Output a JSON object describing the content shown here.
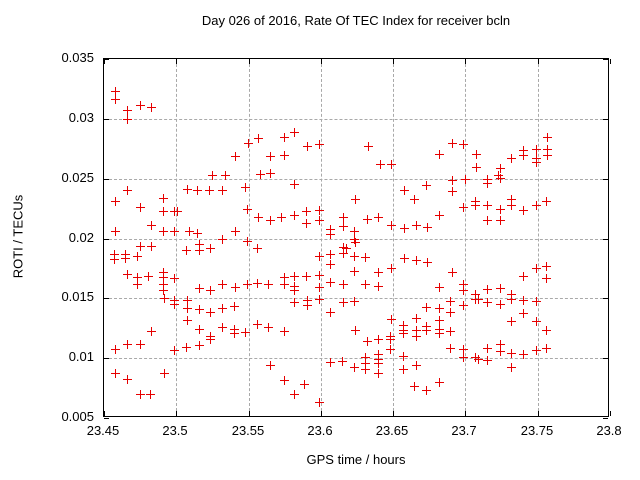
{
  "chart_data": {
    "type": "scatter",
    "title": "Day 026 of 2016, Rate Of TEC Index for receiver bcln",
    "xlabel": "GPS time / hours",
    "ylabel": "ROTI / TECUs",
    "xlim": [
      23.45,
      23.8
    ],
    "ylim": [
      0.005,
      0.035
    ],
    "x_ticks": [
      23.45,
      23.5,
      23.55,
      23.6,
      23.65,
      23.7,
      23.75,
      23.8
    ],
    "x_tick_labels": [
      "23.45",
      "23.5",
      "23.55",
      "23.6",
      "23.65",
      "23.7",
      "23.75",
      "23.8"
    ],
    "y_ticks": [
      0.005,
      0.01,
      0.015,
      0.02,
      0.025,
      0.03,
      0.035
    ],
    "y_tick_labels": [
      "0.005",
      "0.01",
      "0.015",
      "0.02",
      "0.025",
      "0.03",
      "0.035"
    ],
    "grid": true,
    "legend": "none",
    "marker": "plus",
    "marker_color": "#e60000",
    "grid_color": "#a9a9a9",
    "border_color": "#000000",
    "background_color": "#ffffff",
    "series": [
      {
        "name": "ROTI",
        "points": [
          [
            23.459,
            0.0322
          ],
          [
            23.459,
            0.0315
          ],
          [
            23.467,
            0.0306
          ],
          [
            23.467,
            0.0298
          ],
          [
            23.476,
            0.031
          ],
          [
            23.484,
            0.0308
          ],
          [
            23.551,
            0.0278
          ],
          [
            23.558,
            0.0282
          ],
          [
            23.542,
            0.0267
          ],
          [
            23.566,
            0.0267
          ],
          [
            23.526,
            0.0251
          ],
          [
            23.535,
            0.0251
          ],
          [
            23.559,
            0.0252
          ],
          [
            23.566,
            0.0253
          ],
          [
            23.576,
            0.0283
          ],
          [
            23.583,
            0.0287
          ],
          [
            23.576,
            0.0268
          ],
          [
            23.592,
            0.0276
          ],
          [
            23.6,
            0.0277
          ],
          [
            23.634,
            0.0276
          ],
          [
            23.642,
            0.0261
          ],
          [
            23.65,
            0.0261
          ],
          [
            23.683,
            0.0269
          ],
          [
            23.692,
            0.0278
          ],
          [
            23.7,
            0.0277
          ],
          [
            23.709,
            0.0269
          ],
          [
            23.709,
            0.0258
          ],
          [
            23.725,
            0.0257
          ],
          [
            23.724,
            0.0251
          ],
          [
            23.733,
            0.0266
          ],
          [
            23.741,
            0.0272
          ],
          [
            23.741,
            0.0268
          ],
          [
            23.75,
            0.0273
          ],
          [
            23.75,
            0.0266
          ],
          [
            23.75,
            0.0262
          ],
          [
            23.758,
            0.0283
          ],
          [
            23.758,
            0.0273
          ],
          [
            23.758,
            0.0268
          ],
          [
            23.467,
            0.0239
          ],
          [
            23.509,
            0.024
          ],
          [
            23.516,
            0.0239
          ],
          [
            23.524,
            0.0239
          ],
          [
            23.533,
            0.0239
          ],
          [
            23.549,
            0.0241
          ],
          [
            23.459,
            0.023
          ],
          [
            23.492,
            0.0232
          ],
          [
            23.476,
            0.0225
          ],
          [
            23.492,
            0.0221
          ],
          [
            23.5,
            0.0221
          ],
          [
            23.502,
            0.0221
          ],
          [
            23.55,
            0.0223
          ],
          [
            23.558,
            0.0216
          ],
          [
            23.566,
            0.0214
          ],
          [
            23.484,
            0.021
          ],
          [
            23.459,
            0.0205
          ],
          [
            23.492,
            0.0205
          ],
          [
            23.5,
            0.0205
          ],
          [
            23.51,
            0.0205
          ],
          [
            23.516,
            0.0203
          ],
          [
            23.542,
            0.0205
          ],
          [
            23.533,
            0.0198
          ],
          [
            23.55,
            0.0196
          ],
          [
            23.508,
            0.0189
          ],
          [
            23.517,
            0.0194
          ],
          [
            23.517,
            0.0189
          ],
          [
            23.525,
            0.019
          ],
          [
            23.557,
            0.019
          ],
          [
            23.476,
            0.0192
          ],
          [
            23.484,
            0.0192
          ],
          [
            23.458,
            0.0185
          ],
          [
            23.466,
            0.0185
          ],
          [
            23.474,
            0.0184
          ],
          [
            23.458,
            0.0181
          ],
          [
            23.466,
            0.0182
          ],
          [
            23.467,
            0.0169
          ],
          [
            23.492,
            0.017
          ],
          [
            23.492,
            0.0166
          ],
          [
            23.474,
            0.0166
          ],
          [
            23.482,
            0.0167
          ],
          [
            23.5,
            0.0165
          ],
          [
            23.474,
            0.016
          ],
          [
            23.492,
            0.016
          ],
          [
            23.492,
            0.0155
          ],
          [
            23.517,
            0.0157
          ],
          [
            23.525,
            0.0155
          ],
          [
            23.533,
            0.016
          ],
          [
            23.542,
            0.0158
          ],
          [
            23.55,
            0.016
          ],
          [
            23.557,
            0.0161
          ],
          [
            23.565,
            0.016
          ],
          [
            23.583,
            0.0244
          ],
          [
            23.625,
            0.0231
          ],
          [
            23.659,
            0.0239
          ],
          [
            23.674,
            0.0243
          ],
          [
            23.666,
            0.0231
          ],
          [
            23.574,
            0.0216
          ],
          [
            23.583,
            0.0218
          ],
          [
            23.591,
            0.0221
          ],
          [
            23.6,
            0.0222
          ],
          [
            23.591,
            0.0211
          ],
          [
            23.6,
            0.0214
          ],
          [
            23.617,
            0.0216
          ],
          [
            23.617,
            0.0209
          ],
          [
            23.633,
            0.0215
          ],
          [
            23.641,
            0.0216
          ],
          [
            23.608,
            0.0206
          ],
          [
            23.608,
            0.0202
          ],
          [
            23.624,
            0.0205
          ],
          [
            23.65,
            0.021
          ],
          [
            23.659,
            0.0207
          ],
          [
            23.667,
            0.021
          ],
          [
            23.675,
            0.0208
          ],
          [
            23.683,
            0.0218
          ],
          [
            23.624,
            0.0198
          ],
          [
            23.625,
            0.0195
          ],
          [
            23.617,
            0.0191
          ],
          [
            23.619,
            0.019
          ],
          [
            23.617,
            0.0186
          ],
          [
            23.608,
            0.0185
          ],
          [
            23.6,
            0.0184
          ],
          [
            23.624,
            0.0184
          ],
          [
            23.632,
            0.0183
          ],
          [
            23.608,
            0.0177
          ],
          [
            23.624,
            0.0171
          ],
          [
            23.641,
            0.017
          ],
          [
            23.65,
            0.0174
          ],
          [
            23.659,
            0.0182
          ],
          [
            23.667,
            0.018
          ],
          [
            23.675,
            0.0179
          ],
          [
            23.576,
            0.0166
          ],
          [
            23.583,
            0.0167
          ],
          [
            23.591,
            0.0167
          ],
          [
            23.6,
            0.0168
          ],
          [
            23.576,
            0.016
          ],
          [
            23.583,
            0.0159
          ],
          [
            23.583,
            0.0155
          ],
          [
            23.6,
            0.0158
          ],
          [
            23.608,
            0.0162
          ],
          [
            23.617,
            0.016
          ],
          [
            23.632,
            0.016
          ],
          [
            23.641,
            0.0159
          ],
          [
            23.683,
            0.0158
          ],
          [
            23.692,
            0.0247
          ],
          [
            23.701,
            0.0248
          ],
          [
            23.716,
            0.0248
          ],
          [
            23.716,
            0.0245
          ],
          [
            23.725,
            0.0249
          ],
          [
            23.692,
            0.0238
          ],
          [
            23.7,
            0.0225
          ],
          [
            23.708,
            0.023
          ],
          [
            23.708,
            0.0226
          ],
          [
            23.716,
            0.0226
          ],
          [
            23.725,
            0.0223
          ],
          [
            23.733,
            0.0231
          ],
          [
            23.733,
            0.0226
          ],
          [
            23.741,
            0.0222
          ],
          [
            23.75,
            0.0226
          ],
          [
            23.757,
            0.023
          ],
          [
            23.716,
            0.0214
          ],
          [
            23.725,
            0.0214
          ],
          [
            23.692,
            0.017
          ],
          [
            23.7,
            0.016
          ],
          [
            23.741,
            0.0167
          ],
          [
            23.75,
            0.0174
          ],
          [
            23.757,
            0.0175
          ],
          [
            23.757,
            0.0165
          ],
          [
            23.7,
            0.0155
          ],
          [
            23.708,
            0.0152
          ],
          [
            23.716,
            0.0156
          ],
          [
            23.725,
            0.0157
          ],
          [
            23.733,
            0.0152
          ],
          [
            23.493,
            0.0149
          ],
          [
            23.5,
            0.0147
          ],
          [
            23.509,
            0.0147
          ],
          [
            23.5,
            0.0144
          ],
          [
            23.509,
            0.014
          ],
          [
            23.517,
            0.0139
          ],
          [
            23.525,
            0.0137
          ],
          [
            23.533,
            0.014
          ],
          [
            23.541,
            0.0142
          ],
          [
            23.509,
            0.013
          ],
          [
            23.517,
            0.0123
          ],
          [
            23.533,
            0.0124
          ],
          [
            23.541,
            0.0123
          ],
          [
            23.541,
            0.0119
          ],
          [
            23.549,
            0.012
          ],
          [
            23.557,
            0.0127
          ],
          [
            23.565,
            0.0124
          ],
          [
            23.525,
            0.0117
          ],
          [
            23.525,
            0.0114
          ],
          [
            23.484,
            0.0121
          ],
          [
            23.459,
            0.0106
          ],
          [
            23.467,
            0.011
          ],
          [
            23.476,
            0.011
          ],
          [
            23.5,
            0.0105
          ],
          [
            23.508,
            0.0108
          ],
          [
            23.517,
            0.0109
          ],
          [
            23.566,
            0.0093
          ],
          [
            23.459,
            0.0086
          ],
          [
            23.467,
            0.0081
          ],
          [
            23.493,
            0.0086
          ],
          [
            23.476,
            0.0068
          ],
          [
            23.483,
            0.0068
          ],
          [
            23.583,
            0.0145
          ],
          [
            23.592,
            0.0147
          ],
          [
            23.592,
            0.0143
          ],
          [
            23.6,
            0.0148
          ],
          [
            23.617,
            0.0145
          ],
          [
            23.624,
            0.0146
          ],
          [
            23.608,
            0.0137
          ],
          [
            23.65,
            0.0131
          ],
          [
            23.576,
            0.0121
          ],
          [
            23.625,
            0.0122
          ],
          [
            23.633,
            0.0113
          ],
          [
            23.641,
            0.0114
          ],
          [
            23.649,
            0.0117
          ],
          [
            23.649,
            0.0114
          ],
          [
            23.641,
            0.0102
          ],
          [
            23.649,
            0.0106
          ],
          [
            23.658,
            0.0126
          ],
          [
            23.658,
            0.0122
          ],
          [
            23.658,
            0.0119
          ],
          [
            23.667,
            0.0132
          ],
          [
            23.667,
            0.0122
          ],
          [
            23.667,
            0.0117
          ],
          [
            23.674,
            0.0141
          ],
          [
            23.674,
            0.0125
          ],
          [
            23.674,
            0.0122
          ],
          [
            23.683,
            0.014
          ],
          [
            23.683,
            0.013
          ],
          [
            23.683,
            0.0123
          ],
          [
            23.683,
            0.0119
          ],
          [
            23.608,
            0.0095
          ],
          [
            23.616,
            0.0096
          ],
          [
            23.624,
            0.0091
          ],
          [
            23.632,
            0.0099
          ],
          [
            23.632,
            0.0094
          ],
          [
            23.632,
            0.0089
          ],
          [
            23.641,
            0.0098
          ],
          [
            23.641,
            0.0094
          ],
          [
            23.641,
            0.0086
          ],
          [
            23.658,
            0.01
          ],
          [
            23.658,
            0.0089
          ],
          [
            23.667,
            0.0093
          ],
          [
            23.576,
            0.008
          ],
          [
            23.59,
            0.0077
          ],
          [
            23.583,
            0.0068
          ],
          [
            23.6,
            0.0062
          ],
          [
            23.666,
            0.0075
          ],
          [
            23.674,
            0.0072
          ],
          [
            23.683,
            0.0078
          ],
          [
            23.691,
            0.0146
          ],
          [
            23.708,
            0.0148
          ],
          [
            23.71,
            0.0148
          ],
          [
            23.716,
            0.0145
          ],
          [
            23.725,
            0.0144
          ],
          [
            23.733,
            0.0148
          ],
          [
            23.741,
            0.0147
          ],
          [
            23.75,
            0.0146
          ],
          [
            23.7,
            0.0143
          ],
          [
            23.691,
            0.0137
          ],
          [
            23.691,
            0.0121
          ],
          [
            23.733,
            0.0129
          ],
          [
            23.741,
            0.0136
          ],
          [
            23.75,
            0.0129
          ],
          [
            23.757,
            0.0122
          ],
          [
            23.691,
            0.0107
          ],
          [
            23.7,
            0.0106
          ],
          [
            23.716,
            0.0107
          ],
          [
            23.725,
            0.011
          ],
          [
            23.725,
            0.0104
          ],
          [
            23.7,
            0.0099
          ],
          [
            23.708,
            0.0099
          ],
          [
            23.71,
            0.0098
          ],
          [
            23.716,
            0.0097
          ],
          [
            23.733,
            0.0103
          ],
          [
            23.741,
            0.0102
          ],
          [
            23.75,
            0.0105
          ],
          [
            23.757,
            0.0107
          ],
          [
            23.733,
            0.0091
          ]
        ]
      }
    ]
  }
}
